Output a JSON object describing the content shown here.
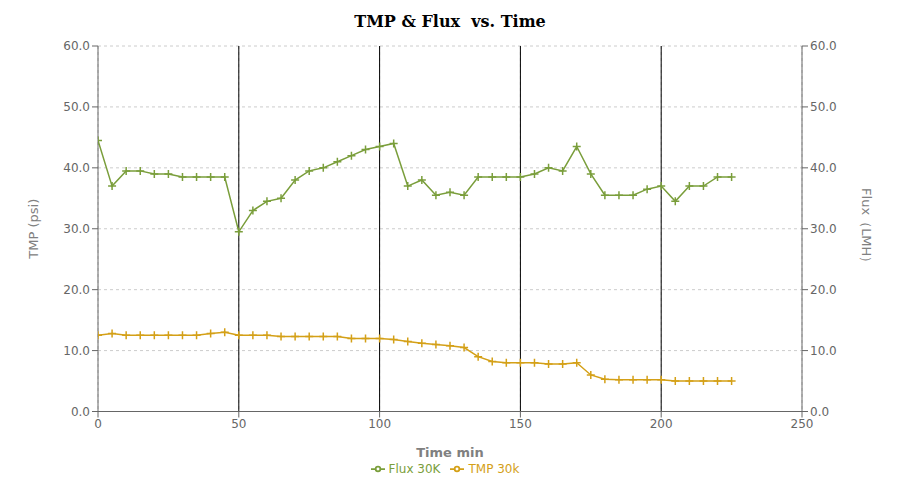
{
  "chart_data": {
    "type": "line",
    "title": "TMP & Flux  vs. Time",
    "x_label": "Time min",
    "y_label": "TMP (psi)",
    "y2_label": "Flux（LMH）",
    "x": [
      0,
      5,
      10,
      15,
      20,
      25,
      30,
      35,
      40,
      45,
      50,
      55,
      60,
      65,
      70,
      75,
      80,
      85,
      90,
      95,
      100,
      105,
      110,
      115,
      120,
      125,
      130,
      135,
      140,
      145,
      150,
      155,
      160,
      165,
      170,
      175,
      180,
      185,
      190,
      195,
      200,
      205,
      210,
      215,
      220,
      225
    ],
    "series": [
      {
        "name": "TMP 30k",
        "color": "#d4a017",
        "marker": "plus",
        "values": [
          12.5,
          12.8,
          12.5,
          12.5,
          12.5,
          12.5,
          12.5,
          12.5,
          12.8,
          13.0,
          12.5,
          12.5,
          12.5,
          12.3,
          12.3,
          12.3,
          12.3,
          12.3,
          12.0,
          12.0,
          12.0,
          11.8,
          11.5,
          11.2,
          11.0,
          10.8,
          10.5,
          9.0,
          8.2,
          8.0,
          8.0,
          8.0,
          7.8,
          7.8,
          8.0,
          6.0,
          5.3,
          5.2,
          5.2,
          5.2,
          5.2,
          5.0,
          5.0,
          5.0,
          5.0,
          5.0
        ]
      },
      {
        "name": "Flux 30K",
        "color": "#7a9e3b",
        "marker": "plus",
        "axis": "y2",
        "values": [
          44.5,
          37.0,
          39.5,
          39.5,
          39.0,
          39.0,
          38.5,
          38.5,
          38.5,
          38.5,
          29.5,
          33.0,
          34.5,
          35.0,
          38.0,
          39.5,
          40.0,
          41.0,
          42.0,
          43.0,
          43.5,
          44.0,
          37.0,
          38.0,
          35.5,
          36.0,
          35.5,
          38.5,
          38.5,
          38.5,
          38.5,
          39.0,
          40.0,
          39.5,
          43.5,
          39.0,
          35.5,
          35.5,
          35.5,
          36.5,
          37.0,
          34.5,
          37.0,
          37.0,
          38.5,
          38.5
        ]
      }
    ],
    "xlim": [
      0,
      250
    ],
    "xticks": [
      0,
      50,
      100,
      150,
      200,
      250
    ],
    "ylim": [
      0,
      60
    ],
    "yticks": [
      {
        "value": 0,
        "label": "0.0"
      },
      {
        "value": 10,
        "label": "10.0"
      },
      {
        "value": 20,
        "label": "20.0"
      },
      {
        "value": 30,
        "label": "30.0"
      },
      {
        "value": 40,
        "label": "40.0"
      },
      {
        "value": 50,
        "label": "50.0"
      },
      {
        "value": 60,
        "label": "60.0"
      }
    ],
    "y2lim": [
      0,
      60
    ],
    "y2ticks": [
      {
        "value": 0,
        "label": "0.0"
      },
      {
        "value": 10,
        "label": "10.0"
      },
      {
        "value": 20,
        "label": "20.0"
      },
      {
        "value": 30,
        "label": "30.0"
      },
      {
        "value": 40,
        "label": "40.0"
      },
      {
        "value": 50,
        "label": "50.0"
      },
      {
        "value": 60,
        "label": "60.0"
      }
    ],
    "vlines": [
      50,
      100,
      150,
      200
    ],
    "grid": true,
    "legend": "bottom"
  }
}
